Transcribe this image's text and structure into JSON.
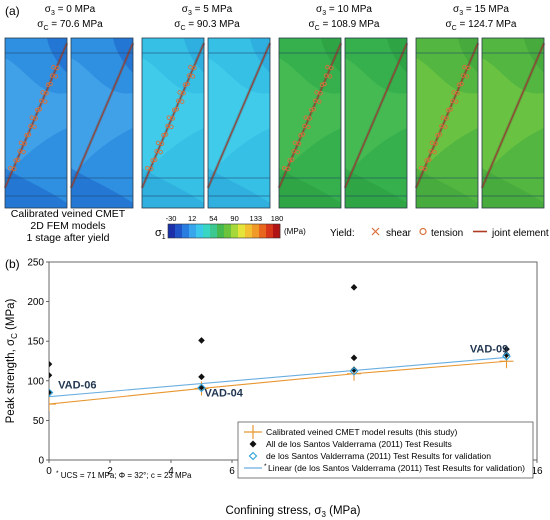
{
  "panel_a": {
    "label": "(a)",
    "models": [
      {
        "s3_sym": "σ",
        "s3_sub": "3",
        "s3_val": " = 0 MPa",
        "sc_sym": "σ",
        "sc_sub": "C",
        "sc_val": " = 70.6 MPa",
        "bg": "#2f8fe0",
        "bg2": "#4fb0f0",
        "bg3": "#1a62c8"
      },
      {
        "s3_sym": "σ",
        "s3_sub": "3",
        "s3_val": " = 5 MPa",
        "sc_sym": "σ",
        "sc_sub": "C",
        "sc_val": " = 90.3 MPa",
        "bg": "#36c0e6",
        "bg2": "#48d4ec",
        "bg3": "#2aa0d8"
      },
      {
        "s3_sym": "σ",
        "s3_sub": "3",
        "s3_val": " = 10 MPa",
        "sc_sym": "σ",
        "sc_sub": "C",
        "sc_val": " = 108.9 MPa",
        "bg": "#35b04c",
        "bg2": "#52c25a",
        "bg3": "#2a9a40"
      },
      {
        "s3_sym": "σ",
        "s3_sub": "3",
        "s3_val": " = 15 MPa",
        "sc_sym": "σ",
        "sc_sub": "C",
        "sc_val": " = 124.7 MPa",
        "bg": "#52b640",
        "bg2": "#7ccc44",
        "bg3": "#3ea03a"
      }
    ],
    "caption_lines": [
      "Calibrated veined CMET",
      "2D FEM models",
      "1 stage after yield"
    ],
    "colorbar": {
      "sym": "σ",
      "sub": "1",
      "ticks": [
        "-30",
        "12",
        "54",
        "90",
        "133",
        "180"
      ],
      "unit": "(MPa)",
      "colors": [
        "#1b2fa8",
        "#1f55c8",
        "#2a7de0",
        "#38a6ec",
        "#3cc8ea",
        "#39d6c4",
        "#3cc890",
        "#45b850",
        "#6cc43c",
        "#a6d83a",
        "#e4e43a",
        "#f2c030",
        "#f09a28",
        "#e8661e",
        "#d8361a",
        "#b01414"
      ]
    },
    "yield_legend": {
      "title": "Yield:",
      "shear": "shear",
      "tension": "tension",
      "joint": "joint element"
    }
  },
  "panel_b": {
    "label": "(b)"
  },
  "colors": {
    "orange": "#e8962e",
    "blue_line": "#6aaee0",
    "diamond": "#111111",
    "open_diamond": "#2aa0d8",
    "annot": "#1f3550"
  },
  "chart_data": {
    "type": "scatter",
    "xlabel_main": "Confining stress, σ",
    "xlabel_sub": "3",
    "xlabel_unit": " (MPa)",
    "ylabel_main": "Peak strength, σ",
    "ylabel_sub": "C",
    "ylabel_unit": " (MPa)",
    "xlim": [
      0,
      16
    ],
    "ylim": [
      0,
      250
    ],
    "xticks": [
      0,
      2,
      4,
      6,
      8,
      10,
      12,
      14,
      16
    ],
    "yticks": [
      0,
      50,
      100,
      150,
      200,
      250
    ],
    "series": [
      {
        "name": "Calibrated veined CMET model results (this study)",
        "marker": "plus",
        "x": [
          0,
          5,
          10,
          15
        ],
        "y": [
          70.6,
          90.3,
          108.9,
          124.7
        ]
      },
      {
        "name": "All de los Santos Valderrama (2011) Test Results",
        "marker": "diamond",
        "x": [
          0,
          0,
          0,
          5,
          5,
          5,
          10,
          10,
          10,
          15,
          15
        ],
        "y": [
          121,
          107,
          86,
          151,
          105,
          92,
          218,
          129,
          114,
          140,
          133
        ]
      },
      {
        "name": "de los Santos Valderrama (2011) Test Results for validation",
        "marker": "open-diamond",
        "x": [
          0,
          5,
          10,
          15
        ],
        "y": [
          85,
          91,
          112,
          131
        ]
      },
      {
        "name": "Linear (de los Santos Valderrama (2011) Test Results for validation)",
        "marker": "line",
        "x": [
          0,
          15
        ],
        "y": [
          80,
          129.5
        ]
      }
    ],
    "legend_prefix_line4": "*",
    "annotations": [
      {
        "text": "VAD-06",
        "x": 0.3,
        "y": 90
      },
      {
        "text": "VAD-04",
        "x": 5.1,
        "y": 80
      },
      {
        "text": "VAD-09",
        "x": 13.8,
        "y": 136
      }
    ],
    "footnote": {
      "star": "*",
      "text": " UCS = 71 MPa; Φ = 32°; c = 23 MPa"
    }
  }
}
